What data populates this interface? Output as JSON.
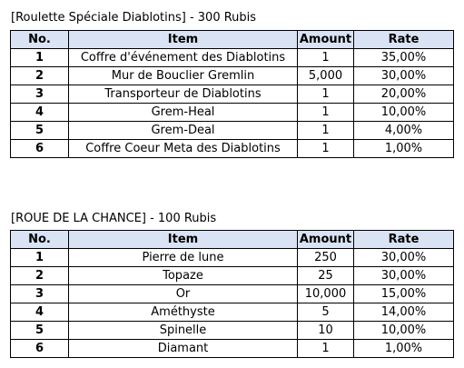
{
  "sections": [
    {
      "title": "[Roulette Spéciale Diablotins] - 300 Rubis",
      "headers": {
        "no": "No.",
        "item": "Item",
        "amount": "Amount",
        "rate": "Rate"
      },
      "rows": [
        {
          "no": "1",
          "item": "Coffre d'événement des Diablotins",
          "amount": "1",
          "rate": "35,00%"
        },
        {
          "no": "2",
          "item": "Mur de Bouclier Gremlin",
          "amount": "5,000",
          "rate": "30,00%"
        },
        {
          "no": "3",
          "item": "Transporteur de Diablotins",
          "amount": "1",
          "rate": "20,00%"
        },
        {
          "no": "4",
          "item": "Grem-Heal",
          "amount": "1",
          "rate": "10,00%"
        },
        {
          "no": "5",
          "item": "Grem-Deal",
          "amount": "1",
          "rate": "4,00%"
        },
        {
          "no": "6",
          "item": "Coffre Coeur Meta des Diablotins",
          "amount": "1",
          "rate": "1,00%"
        }
      ]
    },
    {
      "title": "[ROUE DE LA CHANCE] - 100 Rubis",
      "headers": {
        "no": "No.",
        "item": "Item",
        "amount": "Amount",
        "rate": "Rate"
      },
      "rows": [
        {
          "no": "1",
          "item": "Pierre de lune",
          "amount": "250",
          "rate": "30,00%"
        },
        {
          "no": "2",
          "item": "Topaze",
          "amount": "25",
          "rate": "30,00%"
        },
        {
          "no": "3",
          "item": "Or",
          "amount": "10,000",
          "rate": "15,00%"
        },
        {
          "no": "4",
          "item": "Améthyste",
          "amount": "5",
          "rate": "14,00%"
        },
        {
          "no": "5",
          "item": "Spinelle",
          "amount": "10",
          "rate": "10,00%"
        },
        {
          "no": "6",
          "item": "Diamant",
          "amount": "1",
          "rate": "1,00%"
        }
      ]
    }
  ],
  "colors": {
    "header_background": "#dae3f3",
    "border": "#000000",
    "text": "#000000"
  }
}
